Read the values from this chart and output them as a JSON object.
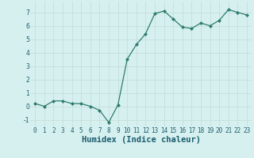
{
  "x": [
    0,
    1,
    2,
    3,
    4,
    5,
    6,
    7,
    8,
    9,
    10,
    11,
    12,
    13,
    14,
    15,
    16,
    17,
    18,
    19,
    20,
    21,
    22,
    23
  ],
  "y": [
    0.2,
    0.0,
    0.4,
    0.4,
    0.2,
    0.2,
    0.0,
    -0.3,
    -1.2,
    0.1,
    3.5,
    4.6,
    5.4,
    6.9,
    7.1,
    6.5,
    5.9,
    5.8,
    6.2,
    6.0,
    6.4,
    7.2,
    7.0,
    6.8
  ],
  "xlabel": "Humidex (Indice chaleur)",
  "ylim": [
    -1.5,
    7.8
  ],
  "xlim": [
    -0.5,
    23.5
  ],
  "yticks": [
    -1,
    0,
    1,
    2,
    3,
    4,
    5,
    6,
    7
  ],
  "xticks": [
    0,
    1,
    2,
    3,
    4,
    5,
    6,
    7,
    8,
    9,
    10,
    11,
    12,
    13,
    14,
    15,
    16,
    17,
    18,
    19,
    20,
    21,
    22,
    23
  ],
  "line_color": "#2e7d6e",
  "marker_color": "#2e7d6e",
  "bg_color": "#d6f0ef",
  "grid_color": "#c0dbd8",
  "label_color": "#1a5c6e",
  "tick_label_fontsize": 5.5,
  "xlabel_fontsize": 7.5
}
